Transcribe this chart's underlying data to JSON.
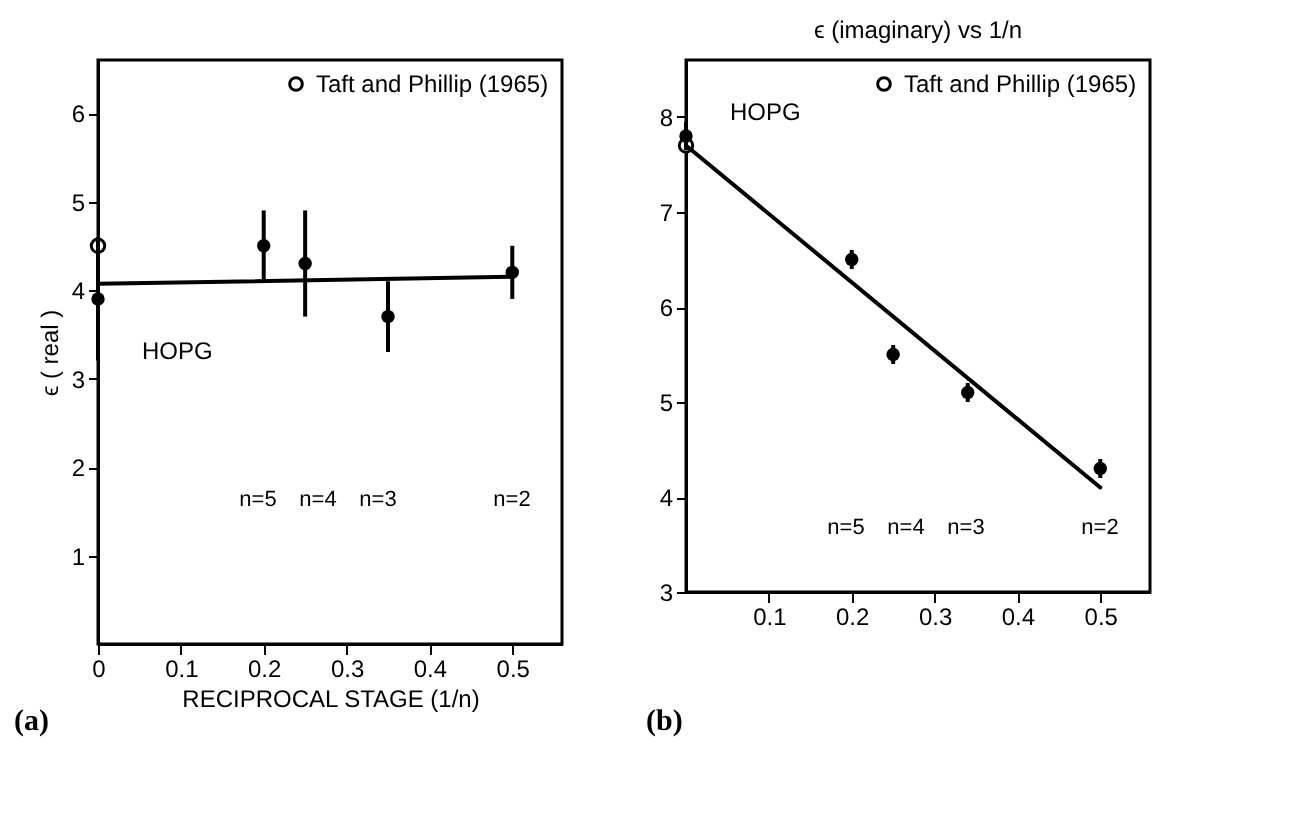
{
  "chart_data": [
    {
      "type": "scatter",
      "ylabel": "ϵ ( real )",
      "xlabel": "RECIPROCAL  STAGE  (1/n)",
      "xlim": [
        0,
        0.56
      ],
      "ylim": [
        0,
        6.6
      ],
      "xticks": [
        0,
        0.1,
        0.2,
        0.3,
        0.4,
        0.5
      ],
      "yticks": [
        1,
        2,
        3,
        4,
        5,
        6
      ],
      "legend": "top right",
      "series": [
        {
          "name": "Taft and Phillip (1965)",
          "type": "scatter",
          "marker": "circle",
          "color": "#000000",
          "x": [
            0
          ],
          "values": [
            4.5
          ]
        },
        {
          "type": "scatter",
          "marker": "circle",
          "color": "#000000",
          "x": [
            0,
            0.2,
            0.25,
            0.35,
            0.5
          ],
          "values": [
            3.9,
            4.5,
            4.3,
            3.7,
            4.2
          ],
          "errors": [
            0.7,
            0.4,
            0.6,
            0.4,
            0.3
          ]
        },
        {
          "type": "line",
          "line_style": "solid",
          "color": "#000000",
          "x": [
            0,
            0.5
          ],
          "values": [
            4.07,
            4.15
          ]
        }
      ],
      "annotations": [
        {
          "text": "HOPG",
          "x": 0,
          "y": 3.9
        },
        "n=5",
        "n=4",
        "n=3",
        "n=2",
        "(a)"
      ]
    },
    {
      "type": "scatter",
      "title": "ϵ (imaginary)  vs  1/n",
      "xlim": [
        0,
        0.56
      ],
      "ylim": [
        3,
        8.6
      ],
      "xticks": [
        0.1,
        0.2,
        0.3,
        0.4,
        0.5
      ],
      "yticks": [
        3,
        4,
        5,
        6,
        7,
        8
      ],
      "legend": "top right",
      "series": [
        {
          "name": "Taft and Phillip (1965)",
          "type": "scatter",
          "marker": "circle",
          "color": "#000000",
          "x": [
            0
          ],
          "values": [
            7.7
          ]
        },
        {
          "type": "scatter",
          "marker": "circle",
          "color": "#000000",
          "x": [
            0,
            0.2,
            0.25,
            0.34,
            0.5
          ],
          "values": [
            7.8,
            6.5,
            5.5,
            5.1,
            4.3
          ],
          "errors": [
            0.15,
            0.1,
            0.1,
            0.1,
            0.1
          ]
        },
        {
          "type": "line",
          "line_style": "solid",
          "color": "#000000",
          "x": [
            0,
            0.5
          ],
          "values": [
            7.7,
            4.1
          ]
        }
      ],
      "annotations": [
        {
          "text": "HOPG",
          "x": 0,
          "y": 7.8
        },
        "n=5",
        "n=4",
        "n=3",
        "n=2",
        "(b)"
      ]
    }
  ]
}
